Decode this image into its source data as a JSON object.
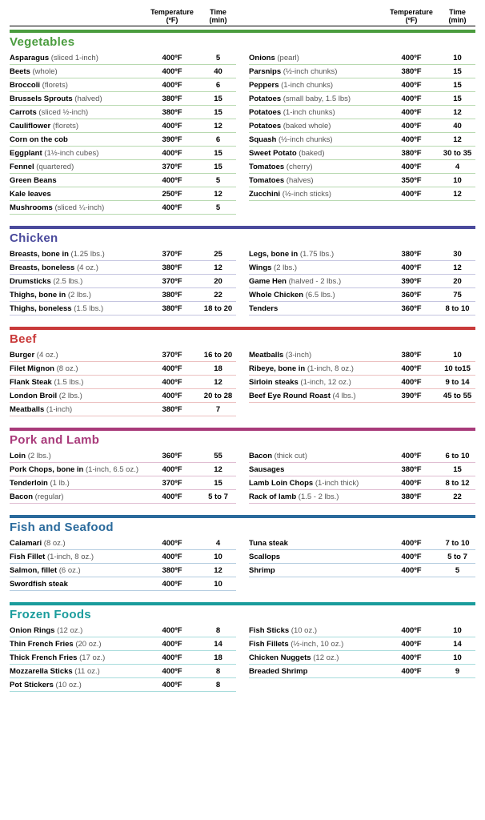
{
  "header": {
    "temp_label_line1": "Temperature",
    "temp_label_line2": "(ºF)",
    "time_label_line1": "Time",
    "time_label_line2": "(min)"
  },
  "sections": [
    {
      "title": "Vegetables",
      "bar_color": "#4a9c3e",
      "title_color": "#4a9c3e",
      "row_border_color": "#b8d9b0",
      "left": [
        {
          "name": "Asparagus",
          "detail": "(sliced 1-inch)",
          "temp": "400ºF",
          "time": "5"
        },
        {
          "name": "Beets",
          "detail": "(whole)",
          "temp": "400ºF",
          "time": "40"
        },
        {
          "name": "Broccoli",
          "detail": "(florets)",
          "temp": "400ºF",
          "time": "6"
        },
        {
          "name": "Brussels Sprouts",
          "detail": "(halved)",
          "temp": "380ºF",
          "time": "15"
        },
        {
          "name": "Carrots",
          "detail": "(sliced ½-inch)",
          "temp": "380ºF",
          "time": "15"
        },
        {
          "name": "Cauliflower",
          "detail": "(florets)",
          "temp": "400ºF",
          "time": "12"
        },
        {
          "name": "Corn on the cob",
          "detail": "",
          "temp": "390ºF",
          "time": "6"
        },
        {
          "name": "Eggplant",
          "detail": "(1½-inch cubes)",
          "temp": "400ºF",
          "time": "15"
        },
        {
          "name": "Fennel",
          "detail": "(quartered)",
          "temp": "370ºF",
          "time": "15"
        },
        {
          "name": "Green Beans",
          "detail": "",
          "temp": "400ºF",
          "time": "5"
        },
        {
          "name": "Kale leaves",
          "detail": "",
          "temp": "250ºF",
          "time": "12"
        },
        {
          "name": "Mushrooms",
          "detail": "(sliced ¼-inch)",
          "temp": "400ºF",
          "time": "5"
        }
      ],
      "right": [
        {
          "name": "Onions",
          "detail": "(pearl)",
          "temp": "400ºF",
          "time": "10"
        },
        {
          "name": "Parsnips",
          "detail": "(½-inch chunks)",
          "temp": "380ºF",
          "time": "15"
        },
        {
          "name": "Peppers",
          "detail": "(1-inch chunks)",
          "temp": "400ºF",
          "time": "15"
        },
        {
          "name": "Potatoes",
          "detail": "(small baby, 1.5 lbs)",
          "temp": "400ºF",
          "time": "15"
        },
        {
          "name": "Potatoes",
          "detail": "(1-inch chunks)",
          "temp": "400ºF",
          "time": "12"
        },
        {
          "name": "Potatoes",
          "detail": "(baked whole)",
          "temp": "400ºF",
          "time": "40"
        },
        {
          "name": "Squash",
          "detail": "(½-inch chunks)",
          "temp": "400ºF",
          "time": "12"
        },
        {
          "name": "Sweet Potato",
          "detail": "(baked)",
          "temp": "380ºF",
          "time": "30 to 35"
        },
        {
          "name": "Tomatoes",
          "detail": "(cherry)",
          "temp": "400ºF",
          "time": "4"
        },
        {
          "name": "Tomatoes",
          "detail": "(halves)",
          "temp": "350ºF",
          "time": "10"
        },
        {
          "name": "Zucchini",
          "detail": "(½-inch sticks)",
          "temp": "400ºF",
          "time": "12"
        }
      ]
    },
    {
      "title": "Chicken",
      "bar_color": "#4a4a9c",
      "title_color": "#4a4a9c",
      "row_border_color": "#c5c5e0",
      "left": [
        {
          "name": "Breasts, bone in",
          "detail": "(1.25 lbs.)",
          "temp": "370ºF",
          "time": "25"
        },
        {
          "name": "Breasts, boneless",
          "detail": " (4 oz.)",
          "temp": "380ºF",
          "time": "12"
        },
        {
          "name": "Drumsticks",
          "detail": "(2.5 lbs.)",
          "temp": "370ºF",
          "time": "20"
        },
        {
          "name": "Thighs, bone in",
          "detail": " (2 lbs.)",
          "temp": "380ºF",
          "time": "22"
        },
        {
          "name": "Thighs, boneless",
          "detail": "(1.5 lbs.)",
          "temp": "380ºF",
          "time": "18 to 20"
        }
      ],
      "right": [
        {
          "name": "Legs, bone in",
          "detail": " (1.75 lbs.)",
          "temp": "380ºF",
          "time": "30"
        },
        {
          "name": "Wings",
          "detail": " (2 lbs.)",
          "temp": "400ºF",
          "time": "12"
        },
        {
          "name": "Game Hen",
          "detail": "(halved - 2 lbs.)",
          "temp": "390ºF",
          "time": "20"
        },
        {
          "name": "Whole Chicken",
          "detail": "(6.5 lbs.)",
          "temp": "360ºF",
          "time": "75"
        },
        {
          "name": "Tenders",
          "detail": "",
          "temp": "360ºF",
          "time": "8 to 10"
        }
      ]
    },
    {
      "title": "Beef",
      "bar_color": "#c93a3a",
      "title_color": "#c93a3a",
      "row_border_color": "#ecc0c0",
      "left": [
        {
          "name": "Burger",
          "detail": " (4 oz.)",
          "temp": "370ºF",
          "time": "16 to 20"
        },
        {
          "name": "Filet Mignon",
          "detail": "(8 oz.)",
          "temp": "400ºF",
          "time": "18"
        },
        {
          "name": "Flank Steak",
          "detail": " (1.5 lbs.)",
          "temp": "400ºF",
          "time": "12"
        },
        {
          "name": "London Broil",
          "detail": " (2 lbs.)",
          "temp": "400ºF",
          "time": "20 to 28"
        },
        {
          "name": "Meatballs",
          "detail": "(1-inch)",
          "temp": "380ºF",
          "time": "7"
        }
      ],
      "right": [
        {
          "name": "Meatballs",
          "detail": "(3-inch)",
          "temp": "380ºF",
          "time": "10"
        },
        {
          "name": "Ribeye, bone in",
          "detail": "(1-inch, 8 oz.)",
          "temp": "400ºF",
          "time": "10 to15"
        },
        {
          "name": "Sirloin steaks",
          "detail": "(1-inch, 12 oz.)",
          "temp": "400ºF",
          "time": "9 to 14"
        },
        {
          "name": "Beef Eye Round Roast",
          "detail": "(4 lbs.)",
          "temp": "390ºF",
          "time": "45 to 55"
        }
      ]
    },
    {
      "title": "Pork and Lamb",
      "bar_color": "#a83a7a",
      "title_color": "#a83a7a",
      "row_border_color": "#e0bdd2",
      "left": [
        {
          "name": "Loin",
          "detail": "(2 lbs.)",
          "temp": "360ºF",
          "time": "55"
        },
        {
          "name": "Pork Chops, bone in",
          "detail": "(1-inch, 6.5 oz.)",
          "temp": "400ºF",
          "time": "12"
        },
        {
          "name": "Tenderloin",
          "detail": "(1 lb.)",
          "temp": "370ºF",
          "time": "15"
        },
        {
          "name": "Bacon",
          "detail": "(regular)",
          "temp": "400ºF",
          "time": "5 to 7"
        }
      ],
      "right": [
        {
          "name": "Bacon",
          "detail": "(thick cut)",
          "temp": "400ºF",
          "time": "6 to 10"
        },
        {
          "name": "Sausages",
          "detail": "",
          "temp": "380ºF",
          "time": "15"
        },
        {
          "name": "Lamb Loin Chops",
          "detail": "(1-inch thick)",
          "temp": "400ºF",
          "time": "8 to 12"
        },
        {
          "name": "Rack of lamb",
          "detail": "(1.5 - 2 lbs.)",
          "temp": "380ºF",
          "time": "22"
        }
      ]
    },
    {
      "title": "Fish and Seafood",
      "bar_color": "#2a6a9c",
      "title_color": "#2a6a9c",
      "row_border_color": "#b5cde0",
      "left": [
        {
          "name": "Calamari",
          "detail": "(8 oz.)",
          "temp": "400ºF",
          "time": "4"
        },
        {
          "name": "Fish Fillet",
          "detail": "(1-inch, 8 oz.)",
          "temp": "400ºF",
          "time": "10"
        },
        {
          "name": "Salmon, fillet",
          "detail": " (6 oz.)",
          "temp": "380ºF",
          "time": "12"
        },
        {
          "name": "Swordfish steak",
          "detail": "",
          "temp": "400ºF",
          "time": "10"
        }
      ],
      "right": [
        {
          "name": "Tuna steak",
          "detail": "",
          "temp": "400ºF",
          "time": "7 to 10"
        },
        {
          "name": "Scallops",
          "detail": "",
          "temp": "400ºF",
          "time": "5 to 7"
        },
        {
          "name": "Shrimp",
          "detail": "",
          "temp": "400ºF",
          "time": "5"
        }
      ]
    },
    {
      "title": "Frozen Foods",
      "bar_color": "#1a9c9c",
      "title_color": "#1a9c9c",
      "row_border_color": "#a8dcdc",
      "left": [
        {
          "name": "Onion Rings",
          "detail": " (12 oz.)",
          "temp": "400ºF",
          "time": "8"
        },
        {
          "name": "Thin French Fries",
          "detail": " (20 oz.)",
          "temp": "400ºF",
          "time": "14"
        },
        {
          "name": "Thick French Fries",
          "detail": "(17 oz.)",
          "temp": "400ºF",
          "time": "18"
        },
        {
          "name": "Mozzarella Sticks",
          "detail": "(11 oz.)",
          "temp": "400ºF",
          "time": "8"
        },
        {
          "name": "Pot Stickers",
          "detail": "(10 oz.)",
          "temp": "400ºF",
          "time": "8"
        }
      ],
      "right": [
        {
          "name": "Fish Sticks",
          "detail": "(10 oz.)",
          "temp": "400ºF",
          "time": "10"
        },
        {
          "name": "Fish Fillets",
          "detail": "(½-inch, 10 oz.)",
          "temp": "400ºF",
          "time": "14"
        },
        {
          "name": "Chicken Nuggets",
          "detail": "(12 oz.)",
          "temp": "400ºF",
          "time": "10"
        },
        {
          "name": "Breaded Shrimp",
          "detail": "",
          "temp": "400ºF",
          "time": "9"
        }
      ]
    }
  ]
}
